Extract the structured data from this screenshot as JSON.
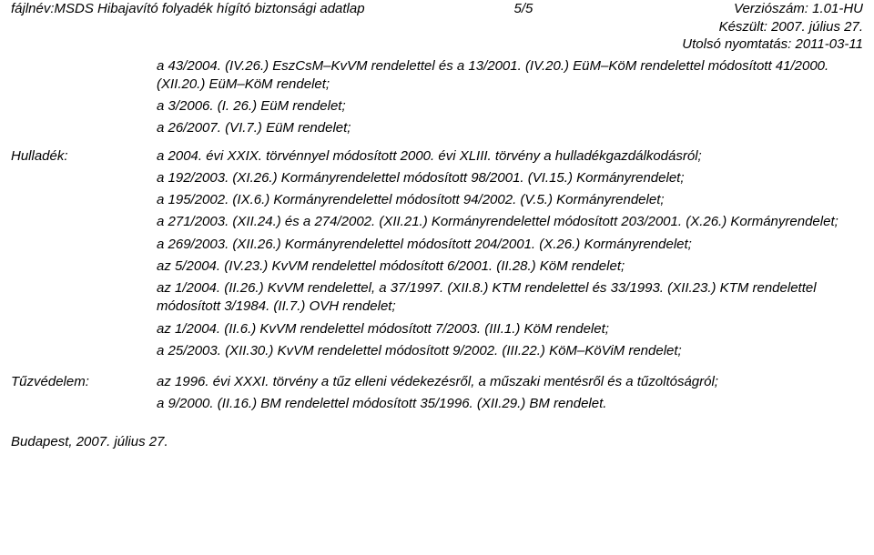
{
  "header": {
    "filename_label": "fájlnév:MSDS  Hibajavító folyadék hígító biztonsági adatlap",
    "page_number": "5/5",
    "version_label": "Verziószám: 1.01-HU",
    "created_label": "Készült: 2007. július 27.",
    "printed_label": "Utolsó nyomtatás: 2011-03-11"
  },
  "intro": {
    "line1": "a 43/2004. (IV.26.) EszCsM–KvVM rendelettel és a 13/2001. (IV.20.) EüM–KöM rendelettel módosított 41/2000. (XII.20.) EüM–KöM rendelet;",
    "line2": "a 3/2006. (I. 26.) EüM rendelet;",
    "line3": "a 26/2007. (VI.7.) EüM rendelet;"
  },
  "hulladek": {
    "label": "Hulladék:",
    "p1": "a 2004. évi XXIX. törvénnyel módosított 2000. évi XLIII. törvény a hulladékgazdálkodásról;",
    "p2": "a 192/2003. (XI.26.) Kormányrendelettel módosított 98/2001. (VI.15.) Kormányrendelet;",
    "p3": "a 195/2002. (IX.6.) Kormányrendelettel módosított 94/2002. (V.5.) Kormányrendelet;",
    "p4": "a 271/2003. (XII.24.) és a 274/2002. (XII.21.) Kormányrendelettel módosított 203/2001. (X.26.) Kormányrendelet;",
    "p5": "a 269/2003. (XII.26.) Kormányrendelettel módosított 204/2001. (X.26.) Kormányrendelet;",
    "p6": "az 5/2004. (IV.23.) KvVM rendelettel módosított 6/2001. (II.28.) KöM rendelet;",
    "p7": "az 1/2004. (II.26.) KvVM rendelettel, a 37/1997. (XII.8.) KTM rendelettel és 33/1993. (XII.23.) KTM rendelettel módosított 3/1984. (II.7.) OVH rendelet;",
    "p8": "az 1/2004. (II.6.) KvVM rendelettel módosított 7/2003. (III.1.) KöM rendelet;",
    "p9": "a 25/2003. (XII.30.) KvVM rendelettel módosított 9/2002. (III.22.) KöM–KöViM rendelet;"
  },
  "tuzvedelem": {
    "label": "Tűzvédelem:",
    "p1": "az 1996. évi XXXI. törvény a tűz elleni védekezésről, a műszaki mentésről és a tűzoltóságról;",
    "p2": "a 9/2000. (II.16.) BM rendelettel módosított 35/1996. (XII.29.) BM rendelet."
  },
  "footer": {
    "date": "Budapest, 2007. július 27."
  }
}
